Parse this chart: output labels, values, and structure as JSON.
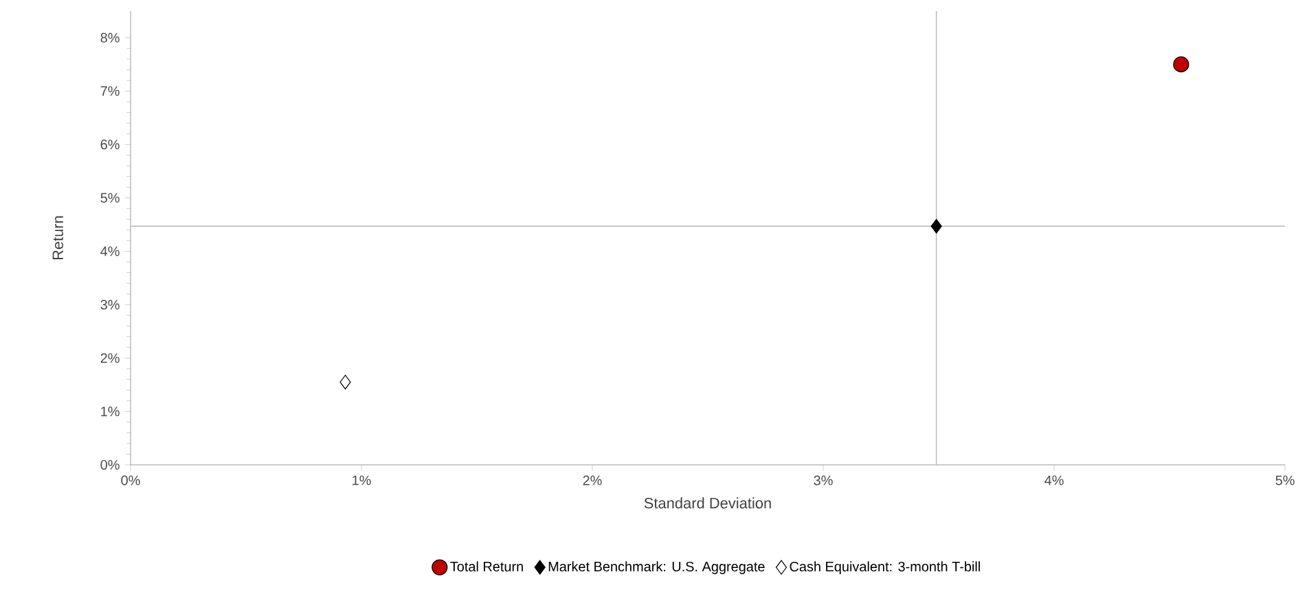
{
  "chart_data": {
    "type": "scatter",
    "xlabel": "Standard Deviation",
    "ylabel": "Return",
    "xlim": [
      0,
      5
    ],
    "ylim": [
      0,
      8.5
    ],
    "xticks": [
      {
        "value": 0,
        "label": "0%"
      },
      {
        "value": 1,
        "label": "1%"
      },
      {
        "value": 2,
        "label": "2%"
      },
      {
        "value": 3,
        "label": "3%"
      },
      {
        "value": 4,
        "label": "4%"
      },
      {
        "value": 5,
        "label": "5%"
      }
    ],
    "yticks": [
      {
        "value": 0,
        "label": "0%"
      },
      {
        "value": 1,
        "label": "1%"
      },
      {
        "value": 2,
        "label": "2%"
      },
      {
        "value": 3,
        "label": "3%"
      },
      {
        "value": 4,
        "label": "4%"
      },
      {
        "value": 5,
        "label": "5%"
      },
      {
        "value": 6,
        "label": "6%"
      },
      {
        "value": 7,
        "label": "7%"
      },
      {
        "value": 8,
        "label": "8%"
      }
    ],
    "series": [
      {
        "name": "Total Return",
        "color": "#c00000",
        "marker": "circle",
        "x": [
          4.55
        ],
        "values": [
          7.5
        ]
      },
      {
        "name": "Market Benchmark: U.S. Aggregate",
        "color": "#000000",
        "marker": "diamond",
        "x": [
          3.49
        ],
        "values": [
          4.47
        ]
      },
      {
        "name": "Cash Equivalent: 3-month T-bill",
        "color": "#ffffff",
        "marker": "diamond",
        "x": [
          0.93
        ],
        "values": [
          1.55
        ]
      }
    ],
    "ref_lines": [
      {
        "axis": "x",
        "value": 3.49,
        "color": "#bfbfbf"
      },
      {
        "axis": "y",
        "value": 4.47,
        "color": "#bfbfbf"
      }
    ],
    "grid": false,
    "legend": "bottom"
  }
}
